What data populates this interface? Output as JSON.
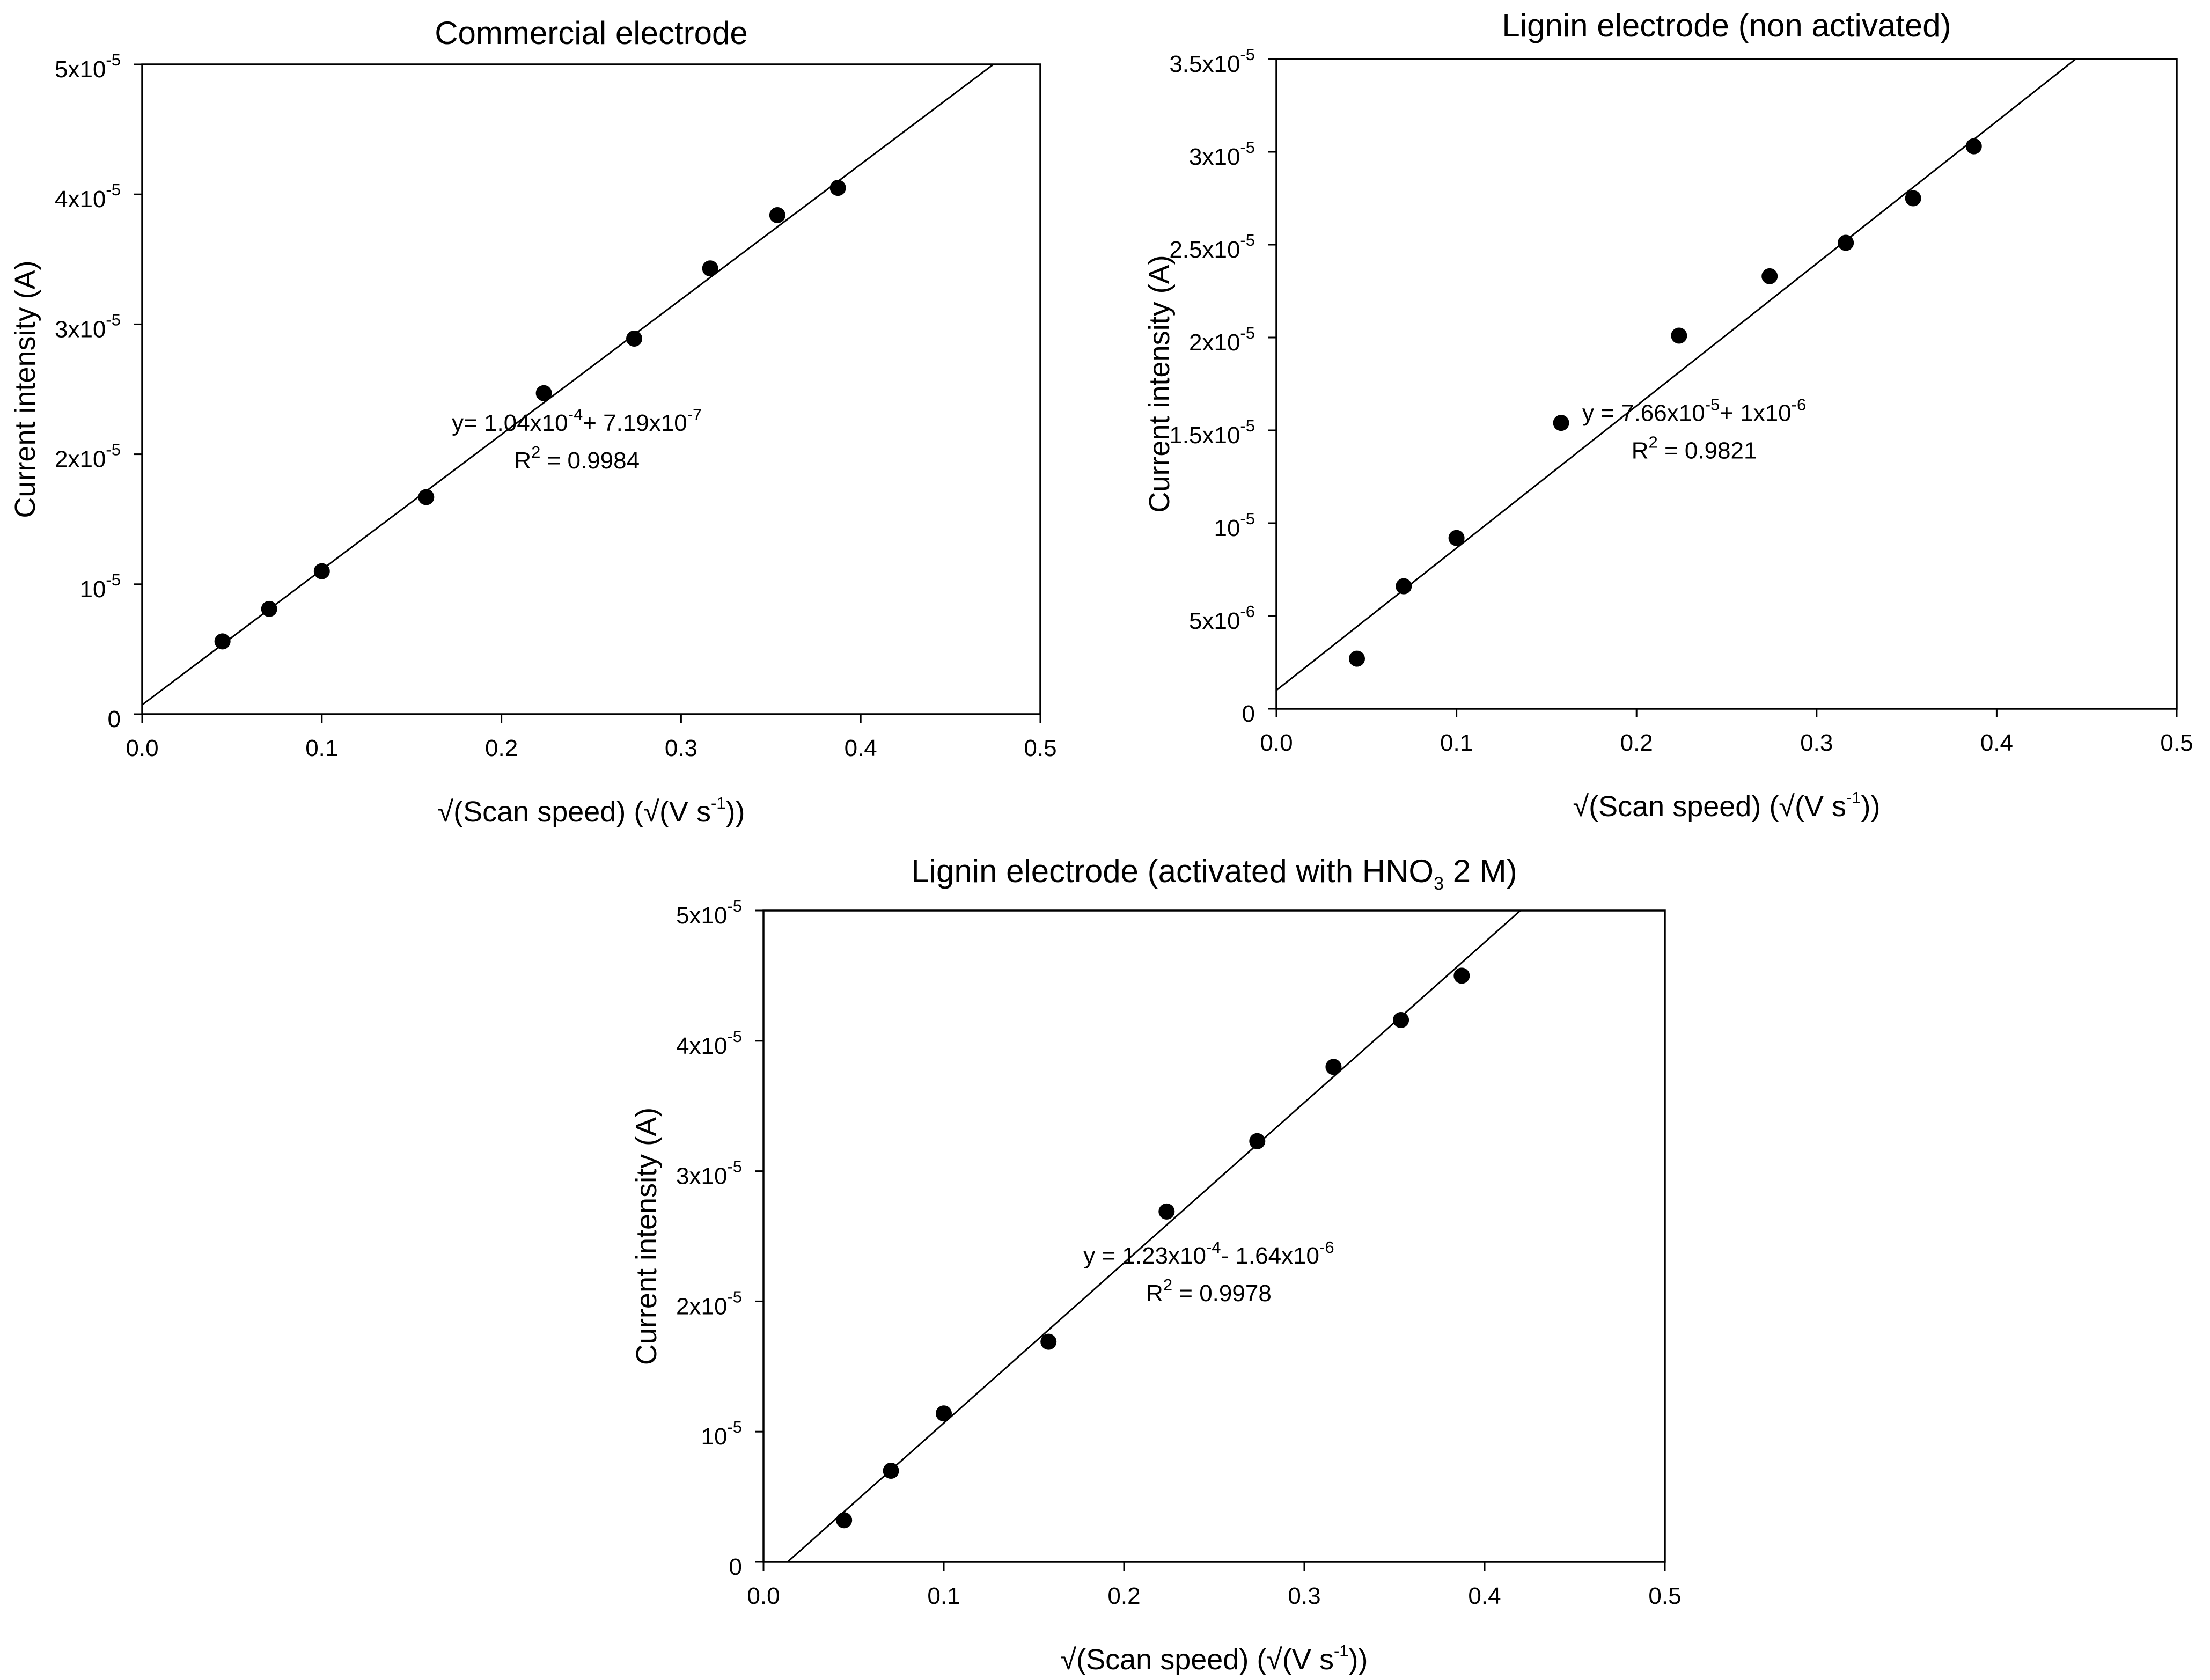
{
  "chart_data": [
    {
      "type": "scatter",
      "title": "Commercial electrode",
      "xlabel": "√(Scan speed)  (√(V s-1))",
      "ylabel": "Current intensity (A)",
      "xlim": [
        0.0,
        0.5
      ],
      "ylim": [
        0,
        5e-05
      ],
      "grid": false,
      "x_ticks": [
        {
          "value": 0.0,
          "label": "0.0"
        },
        {
          "value": 0.1,
          "label": "0.1"
        },
        {
          "value": 0.2,
          "label": "0.2"
        },
        {
          "value": 0.3,
          "label": "0.3"
        },
        {
          "value": 0.4,
          "label": "0.4"
        },
        {
          "value": 0.5,
          "label": "0.5"
        }
      ],
      "y_ticks": [
        {
          "value": 0,
          "label": "0"
        },
        {
          "value": 1e-05,
          "label": "10",
          "exp": "-5"
        },
        {
          "value": 2e-05,
          "label": "2x10",
          "exp": "-5"
        },
        {
          "value": 3e-05,
          "label": "3x10",
          "exp": "-5"
        },
        {
          "value": 4e-05,
          "label": "4x10",
          "exp": "-5"
        },
        {
          "value": 5e-05,
          "label": "5x10",
          "exp": "-5"
        }
      ],
      "x": [
        0.0447,
        0.0707,
        0.1,
        0.1581,
        0.2236,
        0.2739,
        0.3162,
        0.3536,
        0.3873
      ],
      "y": [
        5.6e-06,
        8.1e-06,
        1.1e-05,
        1.67e-05,
        2.47e-05,
        2.89e-05,
        3.43e-05,
        3.84e-05,
        4.05e-05
      ],
      "fit": {
        "slope": 0.000104,
        "intercept": 7.19e-07
      },
      "annotation": {
        "pos": [
          0.242,
          2.18e-05
        ],
        "parts": [
          [
            "y= 1.04x10",
            "t"
          ],
          [
            "-4",
            "sup"
          ],
          [
            "+ 7.19x10",
            "t"
          ],
          [
            "-7",
            "sup"
          ]
        ],
        "r2_label": "R",
        "r2_exp": "2",
        "r2_value": "= 0.9984"
      }
    },
    {
      "type": "scatter",
      "title": "Lignin electrode (non activated)",
      "xlabel": "√(Scan speed)  (√(V s-1))",
      "ylabel": "Current intensity (A)",
      "xlim": [
        0.0,
        0.5
      ],
      "ylim": [
        0,
        3.5e-05
      ],
      "grid": false,
      "x_ticks": [
        {
          "value": 0.0,
          "label": "0.0"
        },
        {
          "value": 0.1,
          "label": "0.1"
        },
        {
          "value": 0.2,
          "label": "0.2"
        },
        {
          "value": 0.3,
          "label": "0.3"
        },
        {
          "value": 0.4,
          "label": "0.4"
        },
        {
          "value": 0.5,
          "label": "0.5"
        }
      ],
      "y_ticks": [
        {
          "value": 0,
          "label": "0"
        },
        {
          "value": 5e-06,
          "label": "5x10",
          "exp": "-6"
        },
        {
          "value": 1e-05,
          "label": "10",
          "exp": "-5"
        },
        {
          "value": 1.5e-05,
          "label": "1.5x10",
          "exp": "-5"
        },
        {
          "value": 2e-05,
          "label": "2x10",
          "exp": "-5"
        },
        {
          "value": 2.5e-05,
          "label": "2.5x10",
          "exp": "-5"
        },
        {
          "value": 3e-05,
          "label": "3x10",
          "exp": "-5"
        },
        {
          "value": 3.5e-05,
          "label": "3.5x10",
          "exp": "-5"
        }
      ],
      "x": [
        0.0447,
        0.0707,
        0.1,
        0.1581,
        0.2236,
        0.2739,
        0.3162,
        0.3536,
        0.3873
      ],
      "y": [
        2.7e-06,
        6.6e-06,
        9.2e-06,
        1.54e-05,
        2.01e-05,
        2.33e-05,
        2.51e-05,
        2.75e-05,
        3.03e-05
      ],
      "fit": {
        "slope": 7.66e-05,
        "intercept": 1e-06
      },
      "annotation": {
        "pos": [
          0.232,
          1.55e-05
        ],
        "parts": [
          [
            "y = 7.66x10",
            "t"
          ],
          [
            "-5",
            "sup"
          ],
          [
            "+ 1x10",
            "t"
          ],
          [
            "-6",
            "sup"
          ]
        ],
        "r2_label": "R",
        "r2_exp": "2",
        "r2_value": "= 0.9821"
      }
    },
    {
      "type": "scatter",
      "title": "Lignin electrode (activated with HNO",
      "title_sub": "3",
      "title_tail": " 2 M)",
      "xlabel": "√(Scan speed)  (√(V s-1))",
      "ylabel": "Current intensity (A)",
      "xlim": [
        0.0,
        0.5
      ],
      "ylim": [
        0,
        5e-05
      ],
      "grid": false,
      "x_ticks": [
        {
          "value": 0.0,
          "label": "0.0"
        },
        {
          "value": 0.1,
          "label": "0.1"
        },
        {
          "value": 0.2,
          "label": "0.2"
        },
        {
          "value": 0.3,
          "label": "0.3"
        },
        {
          "value": 0.4,
          "label": "0.4"
        },
        {
          "value": 0.5,
          "label": "0.5"
        }
      ],
      "y_ticks": [
        {
          "value": 0,
          "label": "0"
        },
        {
          "value": 1e-05,
          "label": "10",
          "exp": "-5"
        },
        {
          "value": 2e-05,
          "label": "2x10",
          "exp": "-5"
        },
        {
          "value": 3e-05,
          "label": "3x10",
          "exp": "-5"
        },
        {
          "value": 4e-05,
          "label": "4x10",
          "exp": "-5"
        },
        {
          "value": 5e-05,
          "label": "5x10",
          "exp": "-5"
        }
      ],
      "x": [
        0.0447,
        0.0707,
        0.1,
        0.1581,
        0.2236,
        0.2739,
        0.3162,
        0.3536,
        0.3873
      ],
      "y": [
        3.2e-06,
        7e-06,
        1.14e-05,
        1.69e-05,
        2.69e-05,
        3.23e-05,
        3.8e-05,
        4.16e-05,
        4.5e-05
      ],
      "fit": {
        "slope": 0.000123,
        "intercept": -1.64e-06
      },
      "annotation": {
        "pos": [
          0.247,
          2.29e-05
        ],
        "parts": [
          [
            "y = 1.23x10",
            "t"
          ],
          [
            "-4",
            "sup"
          ],
          [
            "- 1.64x10",
            "t"
          ],
          [
            "-6",
            "sup"
          ]
        ],
        "r2_label": "R",
        "r2_exp": "2",
        "r2_value": "= 0.9978"
      }
    }
  ]
}
